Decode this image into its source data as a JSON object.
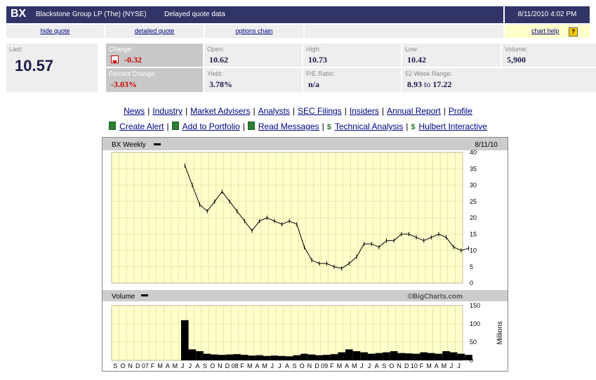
{
  "header": {
    "symbol": "BX",
    "company": "Blackstone Group LP (The) (NYSE)",
    "delay_note": "Delayed quote data",
    "datetime": "8/11/2010 4:02 PM"
  },
  "links": {
    "hide_quote": "hide quote",
    "detailed_quote": "detailed quote",
    "options_chain": "options chain",
    "chart_help": "chart help",
    "help_icon": "?"
  },
  "quote": {
    "last_label": "Last:",
    "last": "10.57",
    "change_label": "Change:",
    "change": "-0.32",
    "pct_change_label": "Percent Change:",
    "pct_change": "-3.03%",
    "open_label": "Open:",
    "open": "10.62",
    "yield_label": "Yield:",
    "yield": "3.78%",
    "high_label": "High:",
    "high": "10.73",
    "pe_label": "P/E Ratio:",
    "pe": "n/a",
    "low_label": "Low:",
    "low": "10.42",
    "range_label": "52 Week Range:",
    "range_low": "8.93",
    "range_to": "to",
    "range_high": "17.22",
    "volume_label": "Volume:",
    "volume": "5,900"
  },
  "nav_row1": [
    "News",
    "Industry",
    "Market Advisers",
    "Analysts",
    "SEC Filings",
    "Insiders",
    "Annual Report",
    "Profile"
  ],
  "nav_row2": [
    "Create Alert",
    "Add to Portfolio",
    "Read Messages",
    "Technical Analysis",
    "Hulbert Interactive"
  ],
  "colors": {
    "header_bg": "#313466",
    "chart_bg": "#ffffcc",
    "grid": "#d9d48a",
    "negative": "#cc0000"
  },
  "chart_data": [
    {
      "type": "line",
      "title": "BX Weekly",
      "date": "8/11/10",
      "watermark": "©BigCharts.com",
      "ylim": [
        0,
        40
      ],
      "yticks": [
        0,
        5,
        10,
        15,
        20,
        25,
        30,
        35,
        40
      ],
      "xticks": [
        "S",
        "O",
        "N",
        "D",
        "07",
        "F",
        "M",
        "A",
        "M",
        "J",
        "J",
        "A",
        "S",
        "O",
        "N",
        "D",
        "08",
        "F",
        "M",
        "A",
        "M",
        "J",
        "J",
        "A",
        "S",
        "O",
        "N",
        "D",
        "09",
        "F",
        "M",
        "A",
        "M",
        "J",
        "J",
        "A",
        "S",
        "O",
        "N",
        "D",
        "10",
        "F",
        "M",
        "A",
        "M",
        "J",
        "J"
      ],
      "series": [
        {
          "name": "BX Weekly",
          "x": [
            "Jun-07",
            "Jul-07",
            "Aug-07",
            "Sep-07",
            "Oct-07",
            "Nov-07",
            "Dec-07",
            "Jan-08",
            "Feb-08",
            "Mar-08",
            "Apr-08",
            "May-08",
            "Jun-08",
            "Jul-08",
            "Aug-08",
            "Sep-08",
            "Oct-08",
            "Nov-08",
            "Dec-08",
            "Jan-09",
            "Feb-09",
            "Mar-09",
            "Apr-09",
            "May-09",
            "Jun-09",
            "Jul-09",
            "Aug-09",
            "Sep-09",
            "Oct-09",
            "Nov-09",
            "Dec-09",
            "Jan-10",
            "Feb-10",
            "Mar-10",
            "Apr-10",
            "May-10",
            "Jun-10",
            "Jul-10",
            "Aug-10"
          ],
          "values": [
            36,
            30,
            24,
            22,
            25,
            28,
            25,
            22,
            19,
            16,
            19,
            20,
            19,
            18,
            19,
            18,
            11,
            7,
            6,
            6,
            5,
            4.5,
            6,
            8,
            12,
            12,
            11,
            13,
            13,
            15,
            15,
            14,
            13,
            14,
            15,
            14,
            11,
            10,
            10.6
          ]
        }
      ]
    },
    {
      "type": "bar",
      "title": "Volume",
      "ylabel": "Millions",
      "ylim": [
        0,
        150
      ],
      "yticks": [
        0,
        50,
        100,
        150
      ],
      "series": [
        {
          "name": "Volume",
          "x": [
            "Jun-07",
            "Jul-07",
            "Aug-07",
            "Sep-07",
            "Oct-07",
            "Nov-07",
            "Dec-07",
            "Jan-08",
            "Feb-08",
            "Mar-08",
            "Apr-08",
            "May-08",
            "Jun-08",
            "Jul-08",
            "Aug-08",
            "Sep-08",
            "Oct-08",
            "Nov-08",
            "Dec-08",
            "Jan-09",
            "Feb-09",
            "Mar-09",
            "Apr-09",
            "May-09",
            "Jun-09",
            "Jul-09",
            "Aug-09",
            "Sep-09",
            "Oct-09",
            "Nov-09",
            "Dec-09",
            "Jan-10",
            "Feb-10",
            "Mar-10",
            "Apr-10",
            "May-10",
            "Jun-10",
            "Jul-10",
            "Aug-10"
          ],
          "values": [
            110,
            30,
            25,
            18,
            16,
            15,
            16,
            17,
            15,
            13,
            14,
            12,
            13,
            12,
            11,
            14,
            18,
            16,
            14,
            15,
            17,
            22,
            30,
            25,
            22,
            18,
            20,
            22,
            25,
            20,
            19,
            18,
            22,
            20,
            18,
            25,
            22,
            18,
            15
          ]
        }
      ]
    }
  ]
}
